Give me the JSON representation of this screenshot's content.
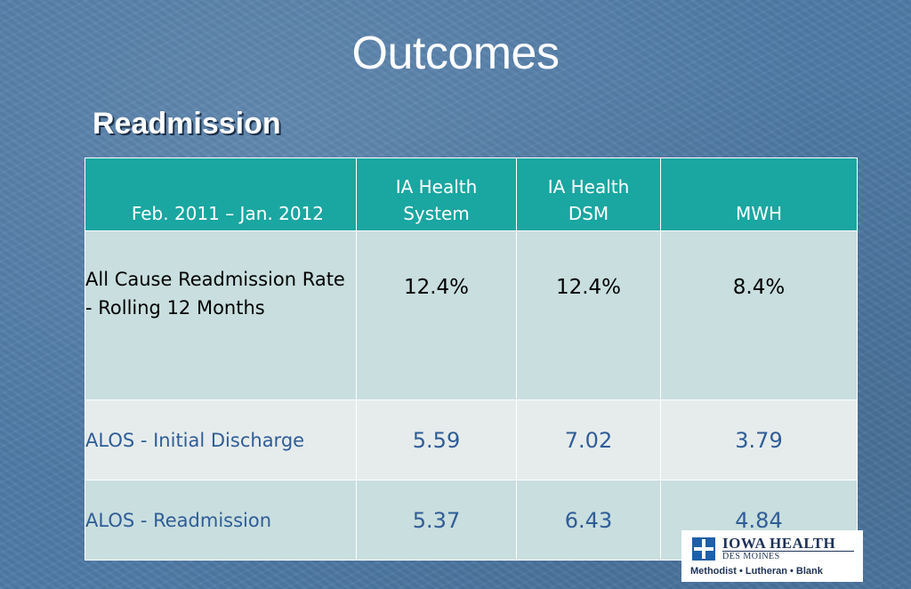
{
  "slide": {
    "title": "Outcomes",
    "subtitle": "Readmission"
  },
  "table": {
    "headers": [
      "Feb. 2011 – Jan. 2012",
      "IA Health System",
      "IA Health DSM",
      "MWH"
    ],
    "header_lines": {
      "period": "Feb. 2011 – Jan. 2012",
      "system_line1": "IA Health",
      "system_line2": "System",
      "dsm_line1": "IA Health",
      "dsm_line2": "DSM",
      "mwh": "MWH"
    },
    "rows": [
      {
        "label_line1": "All Cause Readmission Rate",
        "label_line2": "- Rolling 12 Months",
        "values": [
          "12.4%",
          "12.4%",
          "8.4%"
        ]
      },
      {
        "label": "ALOS - Initial Discharge",
        "values": [
          "5.59",
          "7.02",
          "3.79"
        ]
      },
      {
        "label": "ALOS - Readmission",
        "values": [
          "5.37",
          "6.43",
          "4.84"
        ]
      }
    ]
  },
  "logo": {
    "name": "IOWA HEALTH",
    "location": "DES MOINES",
    "hospitals": "Methodist • Lutheran • Blank",
    "icon": "cross-icon"
  },
  "colors": {
    "background": "#4f7aa6",
    "header": "#1aa6a1",
    "row_dark": "#c9dede",
    "row_light": "#e6ecec",
    "value_text": "#2f5d97",
    "logo_text": "#1d3156"
  }
}
